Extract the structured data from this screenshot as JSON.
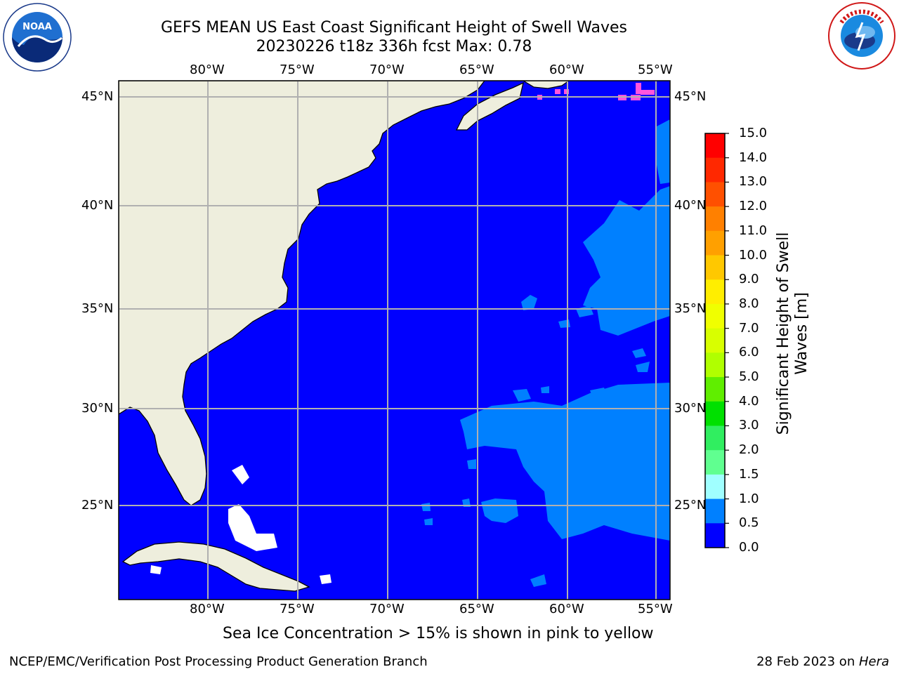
{
  "title": {
    "line1": "GEFS MEAN US East Coast Significant Height of Swell Waves",
    "line2": "20230226 t18z 336h fcst   Max: 0.78"
  },
  "logos": {
    "left": {
      "icon": "noaa-logo",
      "text": "NOAA"
    },
    "right": {
      "icon": "national-weather-service-logo"
    }
  },
  "map": {
    "lon_labels": [
      "80°W",
      "75°W",
      "70°W",
      "65°W",
      "60°W",
      "55°W"
    ],
    "lat_labels": [
      "45°N",
      "40°N",
      "35°N",
      "30°N",
      "25°N"
    ],
    "colors": {
      "ocean_low": "#0000ff",
      "ocean_mid": "#0080ff",
      "land": "#eeeedd",
      "ice": "#ff55dd",
      "grid": "#b0b0b0"
    }
  },
  "colorbar": {
    "label_line1": "Significant Height of Swell",
    "label_line2": "Waves [m]",
    "ticks": [
      "15.0",
      "14.0",
      "13.0",
      "12.0",
      "11.0",
      "10.0",
      "9.0",
      "8.0",
      "7.0",
      "6.0",
      "5.0",
      "4.0",
      "3.0",
      "2.0",
      "1.5",
      "1.0",
      "0.5",
      "0.0"
    ],
    "colors": [
      "#ff0000",
      "#ff2800",
      "#ff5000",
      "#ff8000",
      "#ffa000",
      "#ffc800",
      "#ffee00",
      "#f0ff00",
      "#d8ff00",
      "#b0ff00",
      "#60ee00",
      "#00e000",
      "#30ee60",
      "#60ff90",
      "#a0ffff",
      "#50ffff",
      "#00e8ff",
      "#0080ff",
      "#0000ff"
    ]
  },
  "note": "Sea Ice Concentration > 15% is shown in pink to yellow",
  "footer": {
    "left": "NCEP/EMC/Verification Post Processing Product Generation Branch",
    "right_prefix": "28 Feb 2023 on ",
    "right_host": "Hera"
  }
}
